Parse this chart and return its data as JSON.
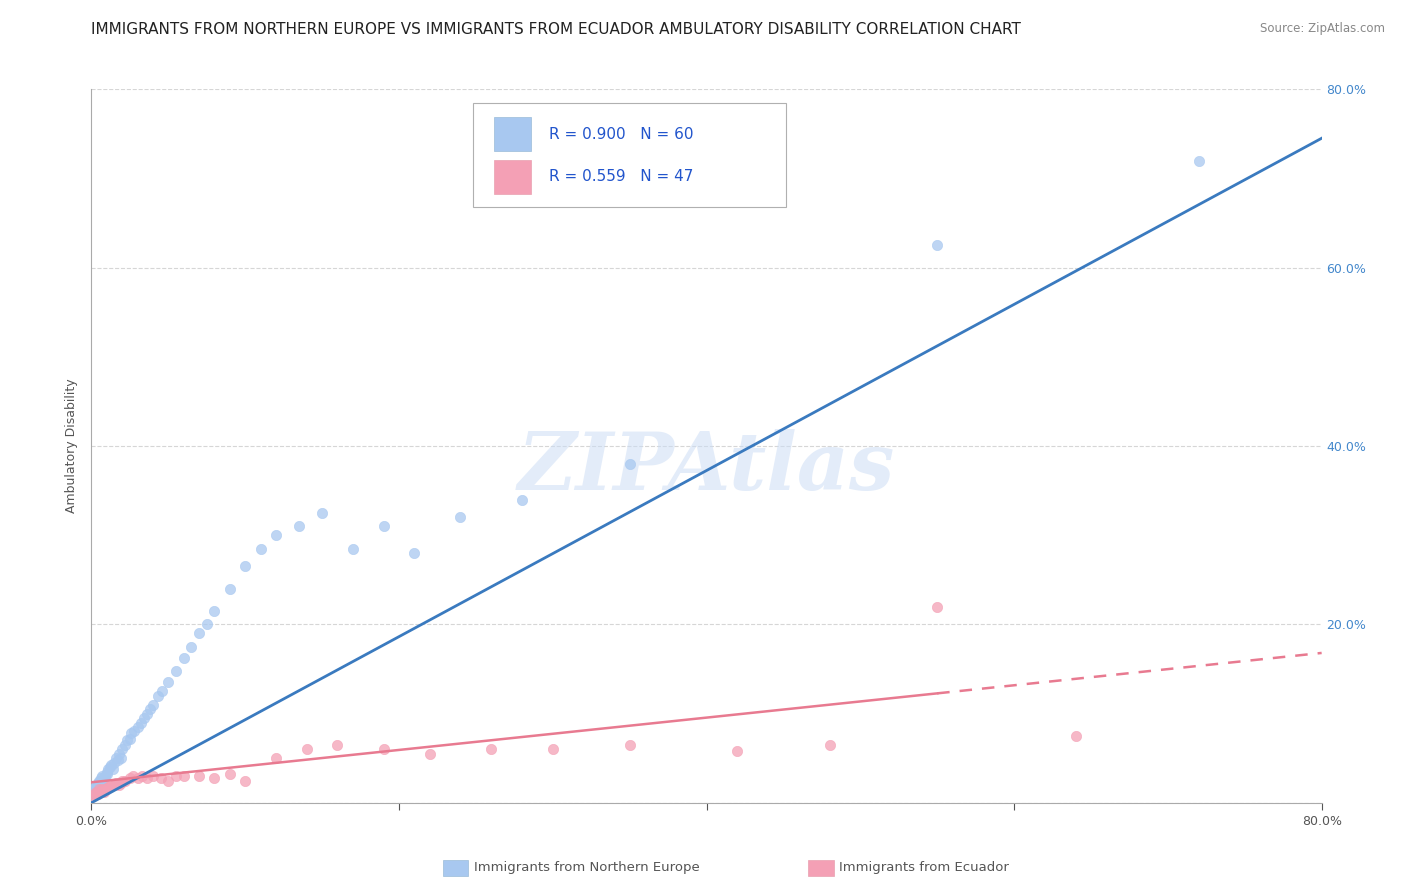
{
  "title": "IMMIGRANTS FROM NORTHERN EUROPE VS IMMIGRANTS FROM ECUADOR AMBULATORY DISABILITY CORRELATION CHART",
  "source": "Source: ZipAtlas.com",
  "ylabel": "Ambulatory Disability",
  "watermark": "ZIPAtlas",
  "series1_label": "Immigrants from Northern Europe",
  "series2_label": "Immigrants from Ecuador",
  "series1_color": "#a8c8f0",
  "series2_color": "#f4a0b5",
  "series1_line_color": "#3a7abf",
  "series2_line_color": "#e87a90",
  "legend_color": "#2255cc",
  "grid_color": "#cccccc",
  "background_color": "#ffffff",
  "title_fontsize": 11,
  "axis_label_fontsize": 9,
  "tick_fontsize": 9,
  "series1_x": [
    0.001,
    0.002,
    0.003,
    0.003,
    0.004,
    0.004,
    0.005,
    0.005,
    0.006,
    0.006,
    0.007,
    0.007,
    0.008,
    0.009,
    0.01,
    0.01,
    0.011,
    0.012,
    0.013,
    0.014,
    0.015,
    0.016,
    0.017,
    0.018,
    0.019,
    0.02,
    0.022,
    0.023,
    0.025,
    0.026,
    0.028,
    0.03,
    0.032,
    0.034,
    0.036,
    0.038,
    0.04,
    0.043,
    0.046,
    0.05,
    0.055,
    0.06,
    0.065,
    0.07,
    0.075,
    0.08,
    0.09,
    0.1,
    0.11,
    0.12,
    0.135,
    0.15,
    0.17,
    0.19,
    0.21,
    0.24,
    0.28,
    0.35,
    0.55,
    0.72
  ],
  "series1_y": [
    0.01,
    0.015,
    0.02,
    0.018,
    0.022,
    0.02,
    0.025,
    0.022,
    0.028,
    0.025,
    0.025,
    0.03,
    0.028,
    0.03,
    0.032,
    0.035,
    0.038,
    0.04,
    0.042,
    0.038,
    0.045,
    0.05,
    0.048,
    0.055,
    0.05,
    0.06,
    0.065,
    0.07,
    0.072,
    0.078,
    0.08,
    0.085,
    0.09,
    0.095,
    0.1,
    0.105,
    0.11,
    0.12,
    0.125,
    0.135,
    0.148,
    0.162,
    0.175,
    0.19,
    0.2,
    0.215,
    0.24,
    0.265,
    0.285,
    0.3,
    0.31,
    0.325,
    0.285,
    0.31,
    0.28,
    0.32,
    0.34,
    0.38,
    0.625,
    0.72
  ],
  "series2_x": [
    0.001,
    0.002,
    0.003,
    0.003,
    0.004,
    0.005,
    0.005,
    0.006,
    0.007,
    0.008,
    0.009,
    0.01,
    0.011,
    0.012,
    0.013,
    0.015,
    0.016,
    0.018,
    0.019,
    0.02,
    0.022,
    0.025,
    0.027,
    0.03,
    0.033,
    0.036,
    0.04,
    0.045,
    0.05,
    0.055,
    0.06,
    0.07,
    0.08,
    0.09,
    0.1,
    0.12,
    0.14,
    0.16,
    0.19,
    0.22,
    0.26,
    0.3,
    0.35,
    0.42,
    0.48,
    0.55,
    0.64
  ],
  "series2_y": [
    0.008,
    0.01,
    0.01,
    0.012,
    0.01,
    0.012,
    0.015,
    0.012,
    0.015,
    0.012,
    0.015,
    0.015,
    0.018,
    0.018,
    0.02,
    0.02,
    0.022,
    0.02,
    0.022,
    0.025,
    0.025,
    0.028,
    0.03,
    0.028,
    0.03,
    0.028,
    0.03,
    0.028,
    0.025,
    0.03,
    0.03,
    0.03,
    0.028,
    0.032,
    0.025,
    0.05,
    0.06,
    0.065,
    0.06,
    0.055,
    0.06,
    0.06,
    0.065,
    0.058,
    0.065,
    0.22,
    0.075
  ],
  "xlim": [
    0.0,
    0.8
  ],
  "ylim": [
    0.0,
    0.8
  ],
  "right_ytick_positions": [
    0.2,
    0.4,
    0.6,
    0.8
  ],
  "right_yticklabels": [
    "20.0%",
    "40.0%",
    "60.0%",
    "80.0%"
  ],
  "xtick_positions": [
    0.0,
    0.2,
    0.4,
    0.6,
    0.8
  ],
  "xticklabels": [
    "0.0%",
    "",
    "",
    "",
    "80.0%"
  ],
  "line1_x0": 0.0,
  "line1_y0": 0.0,
  "line1_x1": 0.8,
  "line1_y1": 0.745,
  "line2_x0": 0.0,
  "line2_y0": 0.023,
  "line2_x1": 0.8,
  "line2_y1": 0.168,
  "line2_solid_end": 0.55
}
